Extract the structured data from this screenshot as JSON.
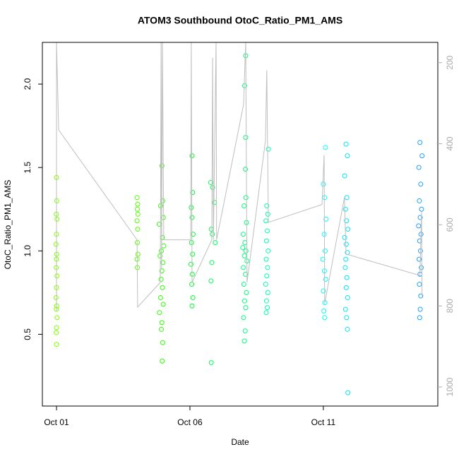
{
  "chart_data": {
    "type": "scatter",
    "title": "ATOM3 Southbound OtoC_Ratio_PM1_AMS",
    "x_label": "Date",
    "y_label": "OtoC_Ratio_PM1_AMS",
    "xlim": [
      0.47,
      15.29
    ],
    "xticks": [
      {
        "value": 1,
        "label": "Oct 01"
      },
      {
        "value": 6,
        "label": "Oct 06"
      },
      {
        "value": 11,
        "label": "Oct 11"
      }
    ],
    "ylim": [
      0.07,
      2.25
    ],
    "yticks": [
      0.5,
      {
        "value": 1,
        "label": "1.0"
      },
      1.5,
      {
        "value": 2,
        "label": "2.0"
      }
    ],
    "y2lim": [
      1047,
      150
    ],
    "y2ticks": [
      200,
      400,
      600,
      800,
      1000
    ],
    "series": [
      {
        "color": "#7fff00",
        "x": [
          1.0,
          1.01,
          0.99,
          1.02,
          1.0,
          0.98,
          1.01,
          1.0,
          0.99,
          1.02,
          1.0,
          0.98,
          1.01,
          0.99,
          1.02,
          1.0,
          0.99,
          1.0
        ],
        "values": [
          1.44,
          1.3,
          1.22,
          1.19,
          1.1,
          1.04,
          0.98,
          0.95,
          0.9,
          0.85,
          0.78,
          0.72,
          0.67,
          0.65,
          0.6,
          0.54,
          0.51,
          0.44
        ]
      },
      {
        "color": "#55ff00",
        "x": [
          4.02,
          4.04,
          4.03,
          4.05,
          4.02,
          4.04,
          4.03,
          4.05,
          4.02,
          4.03
        ],
        "values": [
          1.32,
          1.28,
          1.25,
          1.22,
          1.18,
          1.13,
          1.05,
          0.98,
          0.95,
          0.9
        ]
      },
      {
        "color": "#2bff00",
        "x": [
          4.95,
          4.98,
          4.9,
          5.0,
          4.85,
          4.97,
          5.02,
          4.93,
          4.88,
          4.99,
          4.95,
          4.92,
          4.97,
          4.9,
          5.0,
          4.86,
          4.95,
          4.93,
          4.98,
          4.96
        ],
        "values": [
          1.51,
          1.3,
          1.27,
          1.2,
          1.16,
          1.08,
          1.03,
          1.0,
          0.97,
          0.93,
          0.88,
          0.83,
          0.78,
          0.72,
          0.68,
          0.63,
          0.57,
          0.53,
          0.45,
          0.34
        ]
      },
      {
        "color": "#00ff2b",
        "x": [
          6.08,
          6.1,
          6.05,
          6.08,
          6.12,
          6.06,
          6.1,
          6.04,
          6.09,
          6.07,
          6.11,
          6.08
        ],
        "values": [
          1.57,
          1.35,
          1.26,
          1.2,
          1.1,
          1.05,
          0.98,
          0.92,
          0.86,
          0.8,
          0.72,
          0.67
        ]
      },
      {
        "color": "#00ff55",
        "x": [
          6.78,
          6.85,
          6.92,
          6.8,
          6.84,
          6.95,
          6.82,
          6.79,
          6.8
        ],
        "values": [
          1.41,
          1.38,
          1.29,
          1.13,
          1.1,
          1.05,
          0.93,
          0.82,
          0.33
        ]
      },
      {
        "color": "#00ff80",
        "x": [
          8.09,
          8.05,
          8.09,
          8.08,
          8.1,
          8.03,
          8.12,
          8.0,
          8.06,
          7.98,
          8.1,
          8.04,
          8.14,
          8.0,
          8.08,
          8.02,
          8.12,
          8.05,
          8.09,
          8.01,
          8.07,
          8.04
        ],
        "values": [
          2.17,
          1.99,
          1.68,
          1.49,
          1.32,
          1.27,
          1.17,
          1.1,
          1.05,
          1.02,
          1.0,
          0.97,
          0.94,
          0.9,
          0.86,
          0.8,
          0.75,
          0.7,
          0.66,
          0.6,
          0.52,
          0.46
        ]
      },
      {
        "color": "#00ffaa",
        "x": [
          8.94,
          8.88,
          8.92,
          8.85,
          8.9,
          8.87,
          8.93,
          8.86,
          8.91,
          8.88,
          8.84,
          8.92,
          8.87,
          8.9,
          8.86
        ],
        "values": [
          1.61,
          1.27,
          1.22,
          1.18,
          1.12,
          1.06,
          1.0,
          0.95,
          0.9,
          0.85,
          0.8,
          0.75,
          0.7,
          0.66,
          0.63
        ]
      },
      {
        "color": "#00ffff",
        "x": [
          11.08,
          11.0,
          11.05,
          11.1,
          11.03,
          11.07,
          10.98,
          11.04,
          11.09,
          11.0,
          11.06,
          11.02,
          11.05
        ],
        "values": [
          1.62,
          1.4,
          1.32,
          1.19,
          1.1,
          1.0,
          0.95,
          0.88,
          0.83,
          0.76,
          0.69,
          0.64,
          0.6
        ]
      },
      {
        "color": "#00e5ff",
        "x": [
          11.85,
          11.9,
          11.8,
          11.88,
          11.83,
          11.87,
          11.92,
          11.8,
          11.86,
          11.9,
          11.84,
          11.82,
          11.88,
          11.86,
          11.91,
          11.83,
          11.87,
          11.9,
          11.92
        ],
        "values": [
          1.64,
          1.57,
          1.45,
          1.32,
          1.25,
          1.18,
          1.13,
          1.08,
          1.04,
          0.99,
          0.95,
          0.9,
          0.84,
          0.78,
          0.72,
          0.65,
          0.6,
          0.53,
          0.15
        ]
      },
      {
        "color": "#1ea0ff",
        "x": [
          14.62,
          14.7,
          14.58,
          14.65,
          14.6,
          14.68,
          14.63,
          14.57,
          14.66,
          14.61,
          14.64,
          14.59,
          14.67,
          14.62,
          14.6,
          14.65,
          14.63,
          14.61
        ],
        "values": [
          1.65,
          1.57,
          1.5,
          1.4,
          1.3,
          1.25,
          1.2,
          1.15,
          1.1,
          1.06,
          1.0,
          0.95,
          0.9,
          0.86,
          0.8,
          0.73,
          0.65,
          0.6
        ]
      },
      {
        "type": "line",
        "axis": "y2",
        "color": "#bebebe",
        "x": [
          1.0,
          1.0,
          1.08,
          4.02,
          4.04,
          4.89,
          4.92,
          4.94,
          4.97,
          5.02,
          6.03,
          6.05,
          6.08,
          6.82,
          6.85,
          6.88,
          6.98,
          7.0,
          8.01,
          8.09,
          8.14,
          8.83,
          8.88,
          8.94,
          10.95,
          11.03,
          11.05,
          11.79,
          11.85,
          14.62,
          14.68,
          14.7
        ],
        "values": [
          812,
          150,
          366,
          637,
          803,
          742,
          150,
          707,
          150,
          637,
          637,
          150,
          742,
          637,
          188,
          637,
          150,
          637,
          303,
          150,
          742,
          393,
          219,
          594,
          550,
          428,
          794,
          533,
          672,
          725,
          568,
          777
        ]
      }
    ]
  }
}
